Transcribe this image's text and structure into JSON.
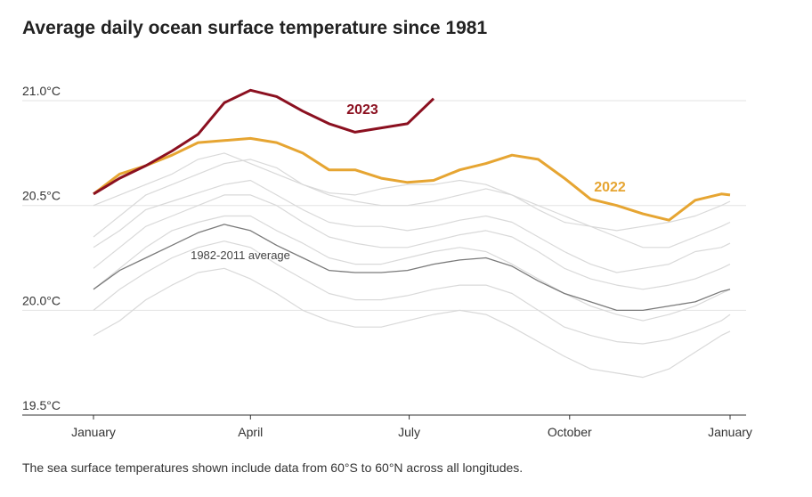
{
  "chart_data": {
    "type": "line",
    "title": "Average daily ocean surface temperature since 1981",
    "footnote": "The sea surface temperatures shown include data from 60°S to 60°N across all longitudes.",
    "x": [
      1,
      16,
      31,
      46,
      61,
      76,
      91,
      106,
      121,
      136,
      151,
      166,
      181,
      196,
      211,
      226,
      241,
      256,
      271,
      286,
      301,
      316,
      331,
      346,
      361,
      366
    ],
    "xlim": [
      1,
      366
    ],
    "xticks": [
      {
        "value": 1,
        "label": "January"
      },
      {
        "value": 91,
        "label": "April"
      },
      {
        "value": 182,
        "label": "July"
      },
      {
        "value": 274,
        "label": "October"
      },
      {
        "value": 366,
        "label": "January"
      }
    ],
    "ylim": [
      19.5,
      21.2
    ],
    "yticks": [
      {
        "value": 19.5,
        "label": "19.5°C"
      },
      {
        "value": 20.0,
        "label": "20.0°C"
      },
      {
        "value": 20.5,
        "label": "20.5°C"
      },
      {
        "value": 21.0,
        "label": "21.0°C"
      }
    ],
    "grid": true,
    "series": [
      {
        "color": "#d9d9d9",
        "values": [
          20.35,
          20.45,
          20.55,
          20.6,
          20.65,
          20.7,
          20.72,
          20.68,
          20.6,
          20.55,
          20.52,
          20.5,
          20.5,
          20.52,
          20.55,
          20.58,
          20.55,
          20.5,
          20.45,
          20.4,
          20.35,
          20.3,
          20.3,
          20.35,
          20.4,
          20.42
        ]
      },
      {
        "color": "#d9d9d9",
        "values": [
          20.2,
          20.3,
          20.4,
          20.45,
          20.5,
          20.55,
          20.55,
          20.5,
          20.42,
          20.35,
          20.32,
          20.3,
          20.3,
          20.33,
          20.36,
          20.38,
          20.35,
          20.28,
          20.2,
          20.15,
          20.12,
          20.1,
          20.12,
          20.15,
          20.2,
          20.22
        ]
      },
      {
        "color": "#d9d9d9",
        "values": [
          20.0,
          20.1,
          20.18,
          20.25,
          20.3,
          20.33,
          20.3,
          20.22,
          20.15,
          20.08,
          20.05,
          20.05,
          20.07,
          20.1,
          20.12,
          20.12,
          20.08,
          20.0,
          19.92,
          19.88,
          19.85,
          19.84,
          19.86,
          19.9,
          19.95,
          19.98
        ]
      },
      {
        "color": "#d9d9d9",
        "values": [
          19.88,
          19.95,
          20.05,
          20.12,
          20.18,
          20.2,
          20.15,
          20.08,
          20.0,
          19.95,
          19.92,
          19.92,
          19.95,
          19.98,
          20.0,
          19.98,
          19.92,
          19.85,
          19.78,
          19.72,
          19.7,
          19.68,
          19.72,
          19.8,
          19.88,
          19.9
        ]
      },
      {
        "color": "#d9d9d9",
        "values": [
          20.5,
          20.55,
          20.6,
          20.65,
          20.72,
          20.75,
          20.7,
          20.65,
          20.6,
          20.56,
          20.55,
          20.58,
          20.6,
          20.6,
          20.62,
          20.6,
          20.55,
          20.48,
          20.42,
          20.4,
          20.38,
          20.4,
          20.42,
          20.45,
          20.5,
          20.52
        ]
      },
      {
        "color": "#d9d9d9",
        "values": [
          20.3,
          20.38,
          20.48,
          20.52,
          20.56,
          20.6,
          20.62,
          20.55,
          20.48,
          20.42,
          20.4,
          20.4,
          20.38,
          20.4,
          20.43,
          20.45,
          20.42,
          20.35,
          20.28,
          20.22,
          20.18,
          20.2,
          20.22,
          20.28,
          20.3,
          20.32
        ]
      },
      {
        "color": "#d9d9d9",
        "values": [
          20.1,
          20.2,
          20.3,
          20.38,
          20.42,
          20.45,
          20.45,
          20.38,
          20.32,
          20.25,
          20.22,
          20.22,
          20.25,
          20.28,
          20.3,
          20.28,
          20.22,
          20.15,
          20.08,
          20.02,
          19.98,
          19.95,
          19.98,
          20.02,
          20.08,
          20.1
        ]
      },
      {
        "name": "1982-2011 average",
        "color": "#7a7a7a",
        "values": [
          20.1,
          20.19,
          20.25,
          20.31,
          20.37,
          20.41,
          20.38,
          20.31,
          20.25,
          20.19,
          20.18,
          20.18,
          20.19,
          20.22,
          20.24,
          20.25,
          20.21,
          20.14,
          20.08,
          20.04,
          20.0,
          20.0,
          20.02,
          20.04,
          20.09,
          20.1
        ]
      },
      {
        "name": "2022",
        "color": "#e6a532",
        "values": [
          20.555,
          20.65,
          20.69,
          20.74,
          20.8,
          20.81,
          20.82,
          20.8,
          20.75,
          20.67,
          20.67,
          20.63,
          20.61,
          20.62,
          20.67,
          20.7,
          20.74,
          20.72,
          20.63,
          20.53,
          20.5,
          20.46,
          20.43,
          20.525,
          20.555,
          20.55
        ]
      },
      {
        "name": "2023",
        "color": "#8b1020",
        "values": [
          20.555,
          20.63,
          20.69,
          20.76,
          20.84,
          20.99,
          21.05,
          21.02,
          20.95,
          20.89,
          20.85,
          20.87,
          20.89,
          21.01,
          null,
          null,
          null,
          null,
          null,
          null,
          null,
          null,
          null,
          null,
          null,
          null
        ]
      }
    ]
  }
}
